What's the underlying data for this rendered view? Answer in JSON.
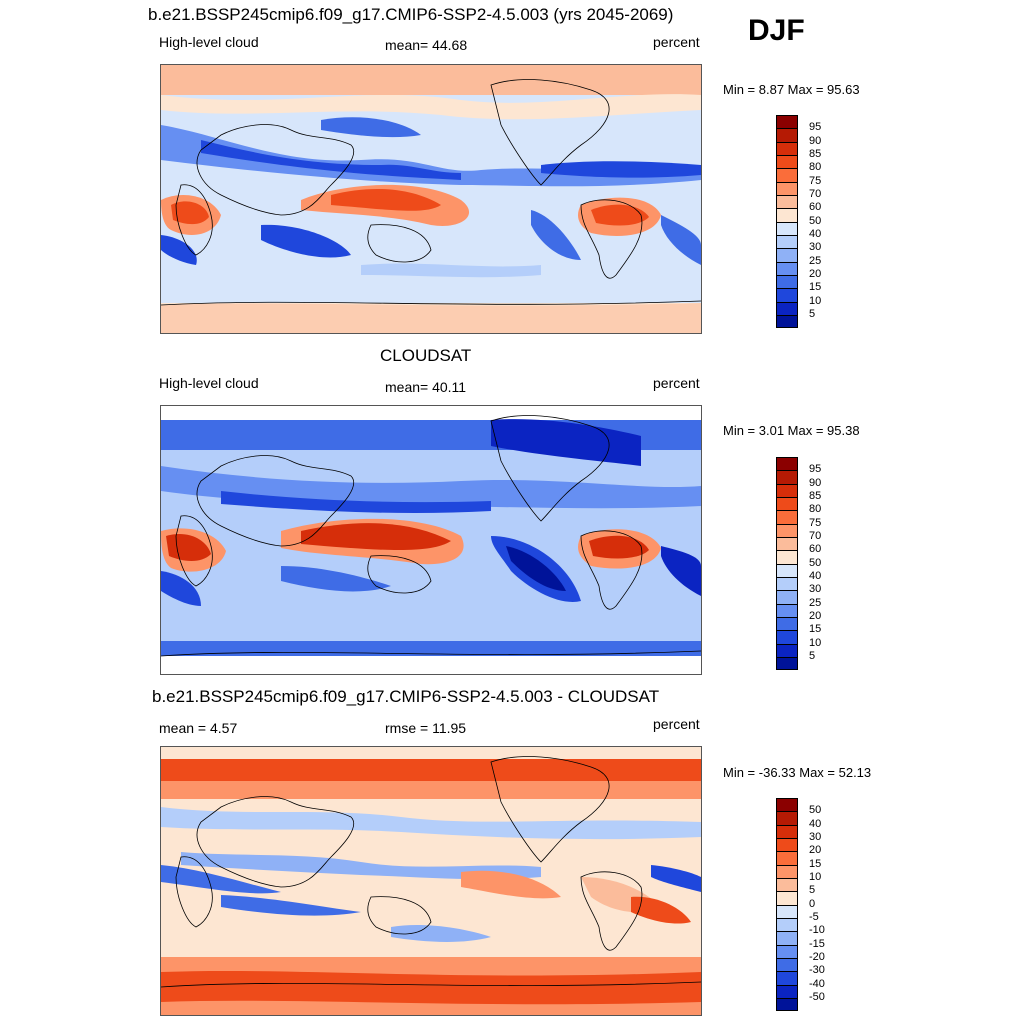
{
  "season": "DJF",
  "panels": [
    {
      "title": "b.e21.BSSP245cmip6.f09_g17.CMIP6-SSP2-4.5.003 (yrs 2045-2069)",
      "left": "High-level cloud",
      "center": "mean=  44.68",
      "right": "percent",
      "minmax": "Min =   8.87 Max =  95.63",
      "colorbar": {
        "colors": [
          "#8b0000",
          "#b51a04",
          "#d62e0a",
          "#ee4b1a",
          "#fa6d3a",
          "#fd9468",
          "#fbbc9b",
          "#fde6d2",
          "#d7e6fb",
          "#b4cefa",
          "#8fb1f6",
          "#668ff2",
          "#3f6ce6",
          "#1f47dc",
          "#0b24c2",
          "#001399"
        ],
        "labels": [
          "95",
          "90",
          "85",
          "80",
          "75",
          "70",
          "60",
          "50",
          "40",
          "30",
          "25",
          "20",
          "15",
          "10",
          "5"
        ]
      }
    },
    {
      "title": "CLOUDSAT",
      "left": "High-level cloud",
      "center": "mean=  40.11",
      "right": "percent",
      "minmax": "Min =   3.01 Max =  95.38",
      "colorbar": {
        "colors": [
          "#8b0000",
          "#b51a04",
          "#d62e0a",
          "#ee4b1a",
          "#fa6d3a",
          "#fd9468",
          "#fbbc9b",
          "#fde6d2",
          "#d7e6fb",
          "#b4cefa",
          "#8fb1f6",
          "#668ff2",
          "#3f6ce6",
          "#1f47dc",
          "#0b24c2",
          "#001399"
        ],
        "labels": [
          "95",
          "90",
          "85",
          "80",
          "75",
          "70",
          "60",
          "50",
          "40",
          "30",
          "25",
          "20",
          "15",
          "10",
          "5"
        ]
      }
    },
    {
      "title": "b.e21.BSSP245cmip6.f09_g17.CMIP6-SSP2-4.5.003 - CLOUDSAT",
      "left": "mean =   4.57",
      "center": "rmse =  11.95",
      "right": "percent",
      "minmax": "Min = -36.33 Max =  52.13",
      "colorbar": {
        "colors": [
          "#8b0000",
          "#b51a04",
          "#d62e0a",
          "#ee4b1a",
          "#fa6d3a",
          "#fd9468",
          "#fbbc9b",
          "#fde6d2",
          "#d7e6fb",
          "#b4cefa",
          "#8fb1f6",
          "#668ff2",
          "#3f6ce6",
          "#1f47dc",
          "#0b24c2",
          "#001399"
        ],
        "labels": [
          "50",
          "40",
          "30",
          "20",
          "15",
          "10",
          "5",
          "0",
          "-5",
          "-10",
          "-15",
          "-20",
          "-30",
          "-40",
          "-50"
        ]
      }
    }
  ]
}
